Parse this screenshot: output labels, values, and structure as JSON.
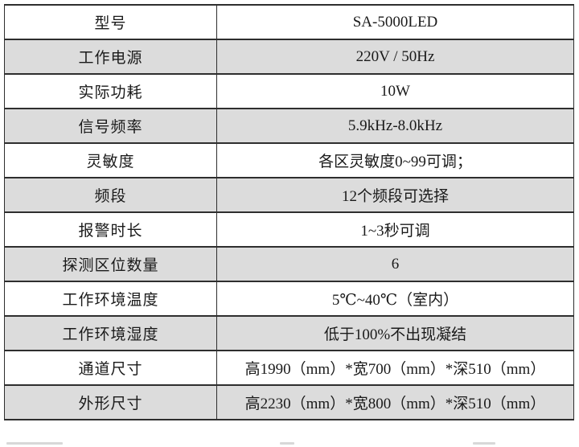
{
  "table": {
    "rows": [
      {
        "label": "型号",
        "value": "SA-5000LED"
      },
      {
        "label": "工作电源",
        "value": "220V / 50Hz"
      },
      {
        "label": "实际功耗",
        "value": "10W"
      },
      {
        "label": "信号频率",
        "value": "5.9kHz-8.0kHz"
      },
      {
        "label": "灵敏度",
        "value": "各区灵敏度0~99可调；"
      },
      {
        "label": "频段",
        "value": "12个频段可选择"
      },
      {
        "label": "报警时长",
        "value": "1~3秒可调"
      },
      {
        "label": "探测区位数量",
        "value": "6"
      },
      {
        "label": "工作环境温度",
        "value": "5℃~40℃（室内）"
      },
      {
        "label": "工作环境湿度",
        "value": "低于100%不出现凝结"
      },
      {
        "label": "通道尺寸",
        "value": "高1990（mm）*宽700（mm）*深510（mm）"
      },
      {
        "label": "外形尺寸",
        "value": "高2230（mm）*宽800（mm）*深510（mm）"
      }
    ],
    "colors": {
      "row_alt_bg": "#dcdcdc",
      "border": "#2e2e2e",
      "text": "#1a1a1a"
    }
  }
}
